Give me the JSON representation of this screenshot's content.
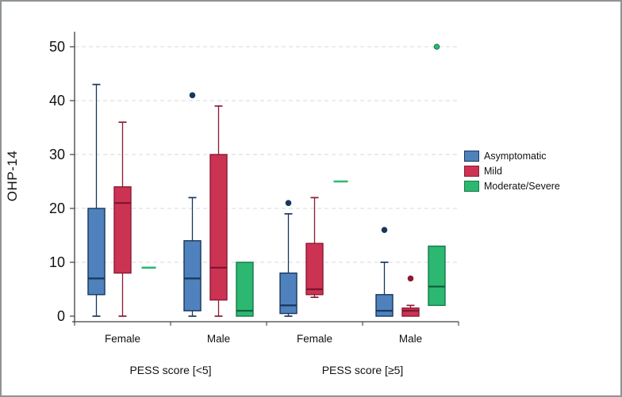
{
  "chart_data": {
    "type": "boxplot",
    "title": "",
    "ylabel": "OHP-14",
    "xlabel": "",
    "ylim": [
      0,
      50
    ],
    "yticks": [
      0,
      10,
      20,
      30,
      40,
      50
    ],
    "grid": "dashed-horizontal",
    "legend_position": "right",
    "categories": [
      "Female",
      "Male",
      "Female",
      "Male"
    ],
    "group_labels": [
      "PESS score [<5]",
      "PESS score [≥5]"
    ],
    "series": [
      {
        "name": "Asymptomatic",
        "fill": "#4f81bd",
        "stroke": "#17375e",
        "median_color": "#17375e",
        "boxes": [
          {
            "low": 0,
            "q1": 4,
            "median": 7,
            "q3": 20,
            "high": 43,
            "outliers": []
          },
          {
            "low": 0,
            "q1": 1,
            "median": 7,
            "q3": 14,
            "high": 22,
            "outliers": [
              41
            ]
          },
          {
            "low": 0,
            "q1": 0.5,
            "median": 2,
            "q3": 8,
            "high": 19,
            "outliers": [
              21
            ]
          },
          {
            "low": 0,
            "q1": 0,
            "median": 1,
            "q3": 4,
            "high": 10,
            "outliers": [
              16
            ]
          }
        ]
      },
      {
        "name": "Mild",
        "fill": "#cc3352",
        "stroke": "#8b1a33",
        "median_color": "#7a1430",
        "boxes": [
          {
            "low": 0,
            "q1": 8,
            "median": 21,
            "q3": 24,
            "high": 36,
            "outliers": []
          },
          {
            "low": 0,
            "q1": 3,
            "median": 9,
            "q3": 30,
            "high": 39,
            "outliers": []
          },
          {
            "low": 3.5,
            "q1": 4,
            "median": 5,
            "q3": 13.5,
            "high": 22,
            "outliers": []
          },
          {
            "low": 0,
            "q1": 0,
            "median": 1,
            "q3": 1.5,
            "high": 2,
            "outliers": [
              7
            ]
          }
        ]
      },
      {
        "name": "Moderate/Severe",
        "fill": "#2db872",
        "stroke": "#157a47",
        "median_color": "#10603a",
        "boxes": [
          {
            "flat": 9
          },
          {
            "low": 0,
            "q1": 0,
            "median": 1,
            "q3": 10,
            "high": 10,
            "outliers": []
          },
          {
            "flat": 25
          },
          {
            "low": 2,
            "q1": 2,
            "median": 5.5,
            "q3": 13,
            "high": 13,
            "outliers": [
              50
            ]
          }
        ]
      }
    ],
    "colors": {
      "gridline": "#d9d9d9",
      "axis": "#3f3f3f",
      "tick_label": "#111111"
    }
  }
}
